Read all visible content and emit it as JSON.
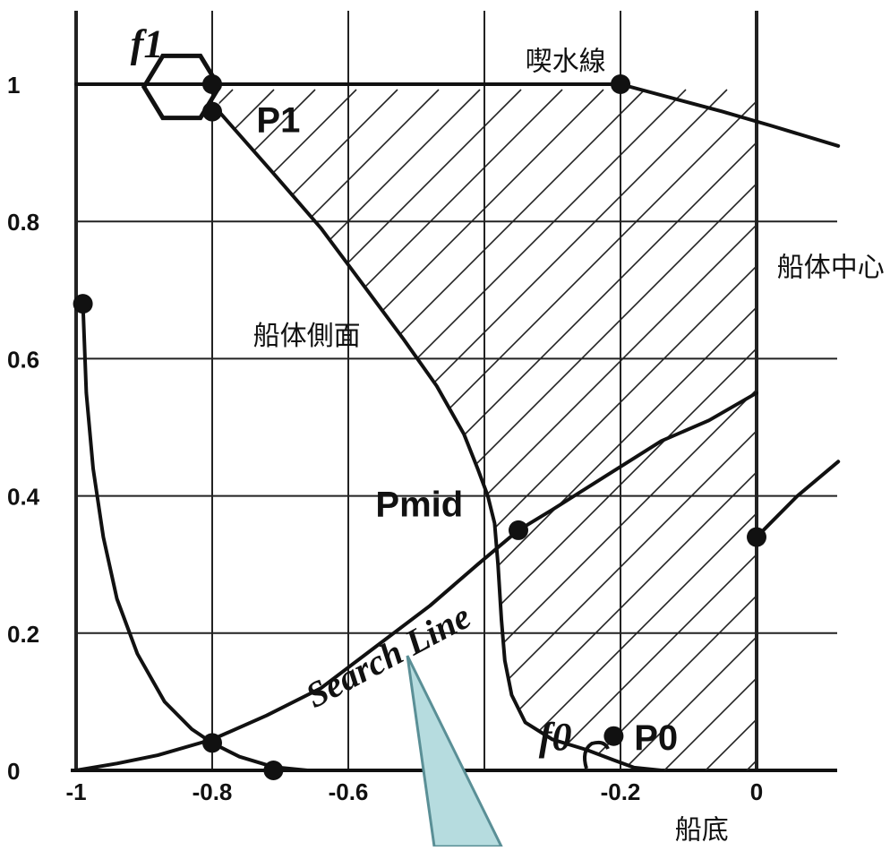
{
  "chart_data": {
    "type": "line",
    "xlim": [
      -1,
      0.1
    ],
    "ylim": [
      0,
      1.1
    ],
    "grid": true,
    "x_ticks": [
      {
        "value": -1,
        "label": "-1"
      },
      {
        "value": -0.8,
        "label": "-0.8"
      },
      {
        "value": -0.6,
        "label": "-0.6"
      },
      {
        "value": -0.2,
        "label": "-0.2"
      },
      {
        "value": 0,
        "label": "0"
      }
    ],
    "y_ticks": [
      {
        "value": 0,
        "label": "0"
      },
      {
        "value": 0.2,
        "label": "0.2"
      },
      {
        "value": 0.4,
        "label": "0.4"
      },
      {
        "value": 0.6,
        "label": "0.6"
      },
      {
        "value": 0.8,
        "label": "0.8"
      },
      {
        "value": 1,
        "label": "1"
      }
    ],
    "series": [
      {
        "name": "",
        "style": "thick",
        "points": [
          [
            -1,
            1.0
          ],
          [
            -0.2,
            1.0
          ],
          [
            -0.2,
            1.0
          ],
          [
            -0.2,
            1.0
          ]
        ]
      },
      {
        "name": "",
        "style": "thick",
        "points": [
          [
            -0.2,
            1.0
          ],
          [
            -0.05,
            0.96
          ],
          [
            0.02,
            0.94
          ],
          [
            0.12,
            0.91
          ]
        ]
      },
      {
        "name": "",
        "style": "thick",
        "points": [
          [
            -0.79,
            0.96
          ],
          [
            -0.71,
            0.87
          ],
          [
            -0.64,
            0.79
          ],
          [
            -0.58,
            0.71
          ],
          [
            -0.52,
            0.63
          ],
          [
            -0.47,
            0.56
          ],
          [
            -0.43,
            0.49
          ],
          [
            -0.41,
            0.44
          ],
          [
            -0.395,
            0.4
          ],
          [
            -0.385,
            0.36
          ],
          [
            -0.38,
            0.3
          ],
          [
            -0.375,
            0.22
          ],
          [
            -0.37,
            0.16
          ],
          [
            -0.36,
            0.11
          ],
          [
            -0.34,
            0.07
          ],
          [
            -0.3,
            0.045
          ],
          [
            -0.25,
            0.03
          ],
          [
            -0.21,
            0.015
          ],
          [
            -0.18,
            0.004
          ],
          [
            -0.14,
            0.0
          ]
        ]
      },
      {
        "name": "",
        "style": "thick",
        "points": [
          [
            -0.99,
            0.68
          ],
          [
            -0.985,
            0.55
          ],
          [
            -0.975,
            0.44
          ],
          [
            -0.96,
            0.34
          ],
          [
            -0.94,
            0.25
          ],
          [
            -0.91,
            0.17
          ],
          [
            -0.87,
            0.1
          ],
          [
            -0.83,
            0.06
          ],
          [
            -0.8,
            0.04
          ],
          [
            -0.76,
            0.02
          ],
          [
            -0.71,
            0.005
          ],
          [
            -0.66,
            0.0
          ]
        ]
      },
      {
        "name": "",
        "style": "thick",
        "points": [
          [
            -1,
            0.0
          ],
          [
            -0.94,
            0.01
          ],
          [
            -0.88,
            0.022
          ],
          [
            -0.8,
            0.045
          ],
          [
            -0.72,
            0.08
          ],
          [
            -0.64,
            0.12
          ],
          [
            -0.56,
            0.18
          ],
          [
            -0.48,
            0.24
          ],
          [
            -0.41,
            0.3
          ],
          [
            -0.35,
            0.35
          ],
          [
            -0.3,
            0.38
          ],
          [
            -0.22,
            0.43
          ],
          [
            -0.14,
            0.48
          ],
          [
            -0.07,
            0.51
          ],
          [
            0,
            0.55
          ]
        ]
      },
      {
        "name": "",
        "style": "thick",
        "points": [
          [
            0,
            0.34
          ],
          [
            0.02,
            0.36
          ],
          [
            0.06,
            0.4
          ],
          [
            0.12,
            0.45
          ]
        ]
      }
    ],
    "points": [
      {
        "name": "P1",
        "x": -0.8,
        "y": 0.96
      },
      {
        "name": "",
        "x": -0.8,
        "y": 1.0
      },
      {
        "name": "",
        "x": -0.2,
        "y": 1.0
      },
      {
        "name": "Pmid",
        "x": -0.35,
        "y": 0.35
      },
      {
        "name": "P0",
        "x": -0.21,
        "y": 0.05
      },
      {
        "name": "",
        "x": -0.8,
        "y": 0.04
      },
      {
        "name": "",
        "x": -0.99,
        "y": 0.68
      },
      {
        "name": "",
        "x": 0,
        "y": 0.34
      },
      {
        "name": "",
        "x": -0.71,
        "y": 0.0
      }
    ],
    "annotations": [
      {
        "text": "喫水線",
        "x": -0.34,
        "y": 1.02,
        "kind": "jp"
      },
      {
        "text": "P1",
        "x": -0.735,
        "y": 0.93,
        "kind": "big"
      },
      {
        "text": "船体中心",
        "x": 0.03,
        "y": 0.72,
        "kind": "jp"
      },
      {
        "text": "船体側面",
        "x": -0.74,
        "y": 0.62,
        "kind": "jp"
      },
      {
        "text": "Pmid",
        "x": -0.56,
        "y": 0.37,
        "kind": "big"
      },
      {
        "text": "Search Line",
        "x": -0.65,
        "y": 0.09,
        "kind": "italic",
        "rotate": -28
      },
      {
        "text": "f1",
        "x": -0.92,
        "y": 1.04,
        "kind": "italic"
      },
      {
        "text": "f0",
        "x": -0.32,
        "y": 0.03,
        "kind": "italic"
      },
      {
        "text": "P0",
        "x": -0.18,
        "y": 0.03,
        "kind": "big"
      },
      {
        "text": "船底",
        "x": -0.12,
        "y": -0.1,
        "kind": "jp"
      }
    ],
    "hatch_region": {
      "x_from": -0.75,
      "x_to": 0.0,
      "y_from": 0.0,
      "y_to": 1.0
    }
  }
}
